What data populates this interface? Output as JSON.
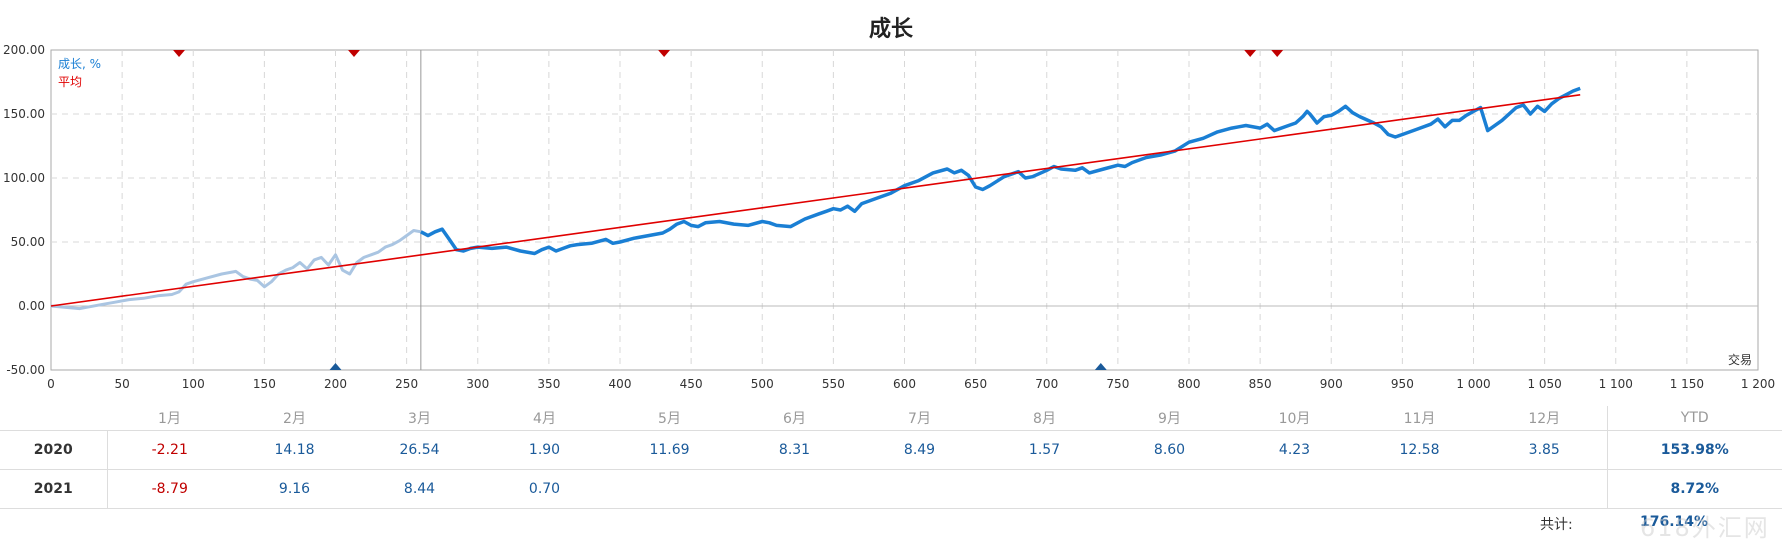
{
  "chart_data": {
    "type": "line",
    "title": "成长",
    "xlabel": "交易",
    "ylabel": "",
    "xlim": [
      0,
      1200
    ],
    "ylim": [
      -50,
      200
    ],
    "x_ticks": [
      "0",
      "50",
      "100",
      "150",
      "200",
      "250",
      "300",
      "350",
      "400",
      "450",
      "500",
      "550",
      "600",
      "650",
      "700",
      "750",
      "800",
      "850",
      "900",
      "950",
      "1 000",
      "1 050",
      "1 100",
      "1 150",
      "1 200"
    ],
    "y_ticks": [
      "-50.00",
      "0.00",
      "50.00",
      "100.00",
      "150.00",
      "200.00"
    ],
    "grid": true,
    "legend_position": "top-left",
    "legend": [
      {
        "label": "成长, %",
        "color": "#1a7fd4"
      },
      {
        "label": "平均",
        "color": "#e00000"
      }
    ],
    "series": [
      {
        "name": "成长, %",
        "color": "#1a7fd4",
        "faded_color": "#aac5e2",
        "faded_until_x": 260,
        "x": [
          0,
          20,
          25,
          35,
          45,
          55,
          65,
          75,
          85,
          90,
          95,
          100,
          110,
          120,
          130,
          135,
          140,
          145,
          150,
          155,
          160,
          165,
          170,
          175,
          180,
          185,
          190,
          195,
          200,
          205,
          210,
          215,
          220,
          225,
          230,
          235,
          240,
          245,
          250,
          255,
          260,
          265,
          270,
          275,
          280,
          285,
          290,
          295,
          300,
          310,
          320,
          330,
          340,
          345,
          350,
          355,
          360,
          365,
          370,
          380,
          390,
          395,
          400,
          410,
          420,
          430,
          435,
          440,
          445,
          450,
          455,
          460,
          470,
          480,
          490,
          500,
          505,
          510,
          520,
          530,
          540,
          545,
          550,
          555,
          560,
          565,
          570,
          580,
          590,
          600,
          610,
          620,
          630,
          635,
          640,
          645,
          650,
          655,
          660,
          670,
          675,
          680,
          685,
          690,
          700,
          705,
          710,
          720,
          725,
          730,
          740,
          750,
          755,
          760,
          770,
          780,
          790,
          800,
          810,
          820,
          830,
          835,
          840,
          850,
          855,
          860,
          870,
          875,
          880,
          883,
          885,
          890,
          895,
          900,
          905,
          910,
          915,
          920,
          930,
          935,
          940,
          945,
          950,
          960,
          970,
          975,
          980,
          985,
          990,
          995,
          1000,
          1005,
          1010,
          1020,
          1030,
          1035,
          1040,
          1045,
          1050,
          1055,
          1060,
          1065,
          1070,
          1075
        ],
        "y": [
          0,
          -2,
          -1,
          1,
          3,
          5,
          6,
          8,
          9,
          11,
          17,
          19,
          22,
          25,
          27,
          23,
          21,
          20,
          15,
          19,
          25,
          28,
          30,
          34,
          29,
          36,
          38,
          32,
          40,
          28,
          25,
          34,
          38,
          40,
          42,
          46,
          48,
          51,
          55,
          59,
          58,
          55,
          58,
          60,
          52,
          44,
          43,
          45,
          46,
          45,
          46,
          43,
          41,
          44,
          46,
          43,
          45,
          47,
          48,
          49,
          52,
          49,
          50,
          53,
          55,
          57,
          60,
          64,
          66,
          63,
          62,
          65,
          66,
          64,
          63,
          66,
          65,
          63,
          62,
          68,
          72,
          74,
          76,
          75,
          78,
          74,
          80,
          84,
          88,
          94,
          98,
          104,
          107,
          104,
          106,
          102,
          93,
          91,
          94,
          101,
          103,
          105,
          100,
          101,
          106,
          109,
          107,
          106,
          108,
          104,
          107,
          110,
          109,
          112,
          116,
          118,
          121,
          128,
          131,
          136,
          139,
          140,
          141,
          139,
          142,
          137,
          141,
          143,
          148,
          152,
          150,
          143,
          148,
          149,
          152,
          156,
          151,
          148,
          143,
          140,
          134,
          132,
          134,
          138,
          142,
          146,
          140,
          145,
          145,
          149,
          152,
          155,
          137,
          145,
          155,
          157,
          150,
          156,
          152,
          158,
          162,
          165,
          168,
          170
        ]
      },
      {
        "name": "平均",
        "color": "#e00000",
        "x": [
          0,
          1075
        ],
        "y": [
          0,
          165
        ]
      }
    ],
    "markers_top": [
      90,
      213,
      431,
      843,
      862
    ],
    "markers_bottom": [
      200,
      738
    ],
    "marker_top_color": "#c00000",
    "marker_bottom_color": "#1a5a9a",
    "vertical_line_x": 260
  },
  "table": {
    "months": [
      "1月",
      "2月",
      "3月",
      "4月",
      "5月",
      "6月",
      "7月",
      "8月",
      "9月",
      "10月",
      "11月",
      "12月"
    ],
    "ytd_label": "YTD",
    "rows": [
      {
        "year": "2020",
        "values": [
          "-2.21",
          "14.18",
          "26.54",
          "1.90",
          "11.69",
          "8.31",
          "8.49",
          "1.57",
          "8.60",
          "4.23",
          "12.58",
          "3.85"
        ],
        "ytd": "153.98%"
      },
      {
        "year": "2021",
        "values": [
          "-8.79",
          "9.16",
          "8.44",
          "0.70",
          "",
          "",
          "",
          "",
          "",
          "",
          "",
          ""
        ],
        "ytd": "8.72%"
      }
    ],
    "total_label": "共计:",
    "total_value": "176.14%"
  },
  "watermark": "618外汇网"
}
